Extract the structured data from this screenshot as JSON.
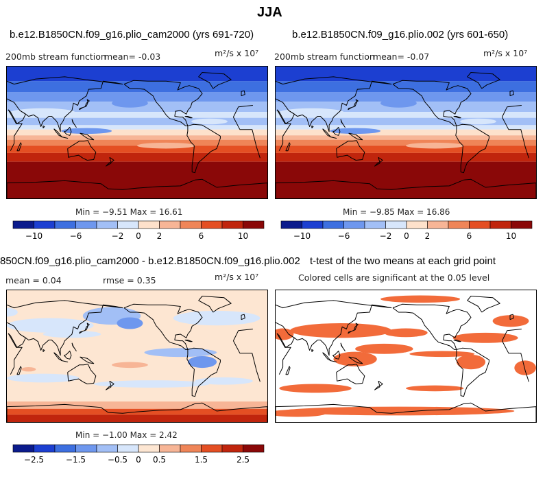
{
  "main_title": "JJA",
  "colors": {
    "cmap12": [
      "#0b1b8c",
      "#1c3fd1",
      "#3d6fe0",
      "#6e97ee",
      "#a2bff6",
      "#d7e6fb",
      "#fde1cb",
      "#f7b596",
      "#ef8558",
      "#e44f23",
      "#c0250d",
      "#8a0808"
    ],
    "cmap_diff": [
      "#0b1b8c",
      "#1c3fd1",
      "#3d6fe0",
      "#6e97ee",
      "#a2bff6",
      "#d7e6fb",
      "#fde6d2",
      "#f7b596",
      "#ef8558",
      "#e44f23",
      "#c0250d",
      "#8a0808"
    ],
    "sig": "#f26b3a",
    "coast": "#000000"
  },
  "chart_data": [
    {
      "type": "heatmap",
      "panel": "top-left",
      "title": "b.e12.B1850CN.f09_g16.plio_cam2000 (yrs 691-720)",
      "left_label": "200mb stream function",
      "mean_label": "mean=  -0.03",
      "units": "m²/s x 10⁷",
      "minmax": "Min = −9.51 Max = 16.61",
      "colorbar_ticks": [
        "−10",
        "−6",
        "−2",
        "0",
        "2",
        "6",
        "10"
      ],
      "min": -9.51,
      "max": 16.61
    },
    {
      "type": "heatmap",
      "panel": "top-right",
      "title": "b.e12.B1850CN.f09_g16.plio.002 (yrs 601-650)",
      "left_label": "200mb stream function",
      "mean_label": "mean=  -0.07",
      "units": "m²/s x 10⁷",
      "minmax": "Min = −9.85 Max = 16.86",
      "colorbar_ticks": [
        "−10",
        "−6",
        "−2",
        "0",
        "2",
        "6",
        "10"
      ],
      "min": -9.85,
      "max": 16.86
    },
    {
      "type": "heatmap",
      "panel": "bottom-left",
      "title": "850CN.f09_g16.plio_cam2000 - b.e12.B1850CN.f09_g16.plio.002",
      "mean_label": "mean =   0.04",
      "rmse_label": "rmse =   0.35",
      "units": "m²/s x 10⁷",
      "minmax": "Min = −1.00 Max =  2.42",
      "colorbar_ticks": [
        "−2.5",
        "−1.5",
        "−0.5",
        "0",
        "0.5",
        "1.5",
        "2.5"
      ],
      "min": -1.0,
      "max": 2.42
    },
    {
      "type": "heatmap",
      "panel": "bottom-right",
      "title": "t-test of the two means at each grid point",
      "subtitle": "Colored cells are significant at the 0.05 level"
    }
  ]
}
